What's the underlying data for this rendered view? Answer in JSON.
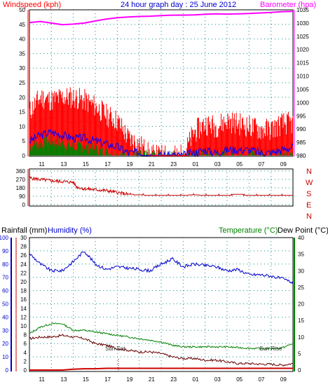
{
  "header": {
    "title": "24 hour graph day : 25 June 2012",
    "wind_label": "Windspeed (kph)",
    "baro_label": "Barometer (hpa)"
  },
  "colors": {
    "windspeed": "#ff0000",
    "gust_avg": "#0000ff",
    "calm": "#008000",
    "barometer": "#ff00ff",
    "direction": "#cc0000",
    "humidity": "#0000cc",
    "temperature": "#008000",
    "dewpoint": "#660000",
    "rainfall": "#cc0000",
    "axis_left": "#0000cc",
    "axis_right_top": "#ff00ff",
    "axis_right_bottom": "#008000",
    "grid": "#0a8a8a"
  },
  "x_ticks": [
    "11",
    "13",
    "15",
    "17",
    "19",
    "21",
    "23",
    "01",
    "03",
    "05",
    "07",
    "09"
  ],
  "chart_data": [
    {
      "type": "line",
      "title": "24 hour graph day : 25 June 2012",
      "x_unit": "hours",
      "ylabel": "Windspeed (kph)",
      "y2label": "Barometer (hpa)",
      "ylim": [
        0,
        50
      ],
      "y2lim": [
        980,
        1035
      ],
      "yticks": [
        "0",
        "5",
        "10",
        "15",
        "20",
        "25",
        "30",
        "35",
        "40",
        "45",
        "50"
      ],
      "y2ticks": [
        "980",
        "985",
        "990",
        "995",
        "1000",
        "1005",
        "1010",
        "1015",
        "1020",
        "1025",
        "1030",
        "1035"
      ],
      "grid": true,
      "series": [
        {
          "name": "Windspeed (kph)",
          "x": [
            0,
            1,
            2,
            3,
            4,
            5,
            6,
            7,
            8,
            9,
            10,
            11,
            12,
            13,
            14,
            15,
            16,
            17,
            18,
            19,
            20,
            21,
            22,
            23,
            24
          ],
          "values": [
            9,
            12,
            13,
            12,
            11,
            12,
            11,
            8,
            6,
            3,
            3,
            0,
            0,
            0,
            0,
            2,
            3,
            2,
            3,
            3,
            2,
            2,
            2,
            3,
            5
          ]
        },
        {
          "name": "wind max",
          "x": [
            0,
            1,
            2,
            3,
            4,
            5,
            6,
            7,
            8,
            9,
            10,
            11,
            12,
            13,
            14,
            15,
            16,
            17,
            18,
            19,
            20,
            21,
            22,
            23,
            24
          ],
          "values": [
            15,
            20,
            19,
            20,
            20,
            19,
            17,
            14,
            12,
            6,
            4,
            0,
            0,
            0,
            0,
            8,
            11,
            10,
            12,
            11,
            10,
            9,
            9,
            11,
            11
          ]
        },
        {
          "name": "wind avg",
          "x": [
            0,
            1,
            2,
            3,
            4,
            5,
            6,
            7,
            8,
            9,
            10,
            11,
            12,
            13,
            14,
            15,
            16,
            17,
            18,
            19,
            20,
            21,
            22,
            23,
            24
          ],
          "values": [
            5,
            7,
            8,
            7,
            6,
            6,
            5,
            4,
            3,
            1,
            1,
            0,
            0,
            0,
            0,
            1,
            2,
            1,
            2,
            2,
            2,
            1,
            1,
            2,
            3
          ]
        },
        {
          "name": "calm",
          "x": [
            0,
            1,
            2,
            3,
            4,
            5,
            6,
            7,
            8,
            9,
            10,
            11,
            12,
            13,
            14,
            15,
            16,
            17,
            18,
            19,
            20,
            21,
            22,
            23,
            24
          ],
          "values": [
            3,
            4,
            5,
            4,
            3,
            3,
            2,
            1,
            0,
            0,
            0,
            0,
            0,
            0,
            0,
            0,
            0,
            0,
            0,
            0,
            0,
            0,
            0,
            0,
            0
          ]
        },
        {
          "name": "Barometer (hpa)",
          "axis": "right",
          "x": [
            0,
            1,
            2,
            3,
            4,
            5,
            6,
            7,
            8,
            9,
            10,
            11,
            12,
            13,
            14,
            15,
            16,
            17,
            18,
            19,
            20,
            21,
            22,
            23,
            24
          ],
          "values": [
            1030.2,
            1030.6,
            1030,
            1029.4,
            1029.6,
            1030,
            1030.8,
            1031.5,
            1032,
            1032.3,
            1032.5,
            1032.6,
            1032.8,
            1033,
            1033,
            1033.1,
            1033.3,
            1033.5,
            1033.4,
            1033.5,
            1033.6,
            1033.8,
            1034,
            1034.3,
            1034.4
          ]
        }
      ]
    },
    {
      "type": "line",
      "ylabel": "Wind direction",
      "ylim": [
        0,
        360
      ],
      "yticks": [
        "0",
        "90",
        "180",
        "270",
        "360"
      ],
      "compass": [
        "N",
        "W",
        "S",
        "E",
        "N"
      ],
      "grid": true,
      "series": [
        {
          "name": "direction",
          "x": [
            0,
            1,
            2,
            3,
            4,
            4.3,
            5,
            6,
            7,
            8,
            9,
            10,
            11,
            12,
            13,
            14,
            15,
            16,
            17,
            18,
            19,
            20,
            21,
            22,
            23,
            24
          ],
          "values": [
            285,
            270,
            255,
            248,
            240,
            190,
            170,
            160,
            150,
            130,
            110,
            105,
            100,
            100,
            100,
            100,
            105,
            100,
            100,
            100,
            110,
            100,
            100,
            100,
            100,
            100
          ]
        }
      ]
    },
    {
      "type": "line",
      "ylabel": "Humidity (%)",
      "ylabel2": "Rainfall (mm)",
      "y2label": "Temperature (°C)Dew Point (°C)",
      "ylim": [
        0,
        100
      ],
      "rain_lim": [
        0,
        30
      ],
      "y2lim": [
        0,
        40
      ],
      "humidity_ticks": [
        "0",
        "10",
        "20",
        "30",
        "40",
        "50",
        "60",
        "70",
        "80",
        "90",
        "100"
      ],
      "rain_ticks": [
        "0",
        "2",
        "4",
        "6",
        "8",
        "10",
        "12",
        "14",
        "16",
        "18",
        "20",
        "22",
        "24",
        "26",
        "28",
        "30"
      ],
      "y2ticks": [
        "0",
        "5",
        "10",
        "15",
        "20",
        "25",
        "30",
        "35",
        "40"
      ],
      "annotations": [
        {
          "text": "Sun Set",
          "x": 8
        },
        {
          "text": "Sun Rise",
          "x": 23
        }
      ],
      "grid": true,
      "series": [
        {
          "name": "Humidity",
          "x": [
            0,
            1,
            2,
            3,
            4,
            5,
            6,
            7,
            8,
            9,
            10,
            11,
            12,
            13,
            14,
            15,
            16,
            17,
            18,
            19,
            20,
            21,
            22,
            23,
            24
          ],
          "values": [
            88,
            80,
            75,
            75,
            82,
            90,
            80,
            76,
            78,
            77,
            76,
            75,
            80,
            84,
            78,
            80,
            79,
            78,
            75,
            76,
            72,
            72,
            71,
            69,
            66
          ]
        },
        {
          "name": "Temperature",
          "x": [
            0,
            1,
            2,
            3,
            4,
            5,
            6,
            7,
            8,
            9,
            10,
            11,
            12,
            13,
            14,
            15,
            16,
            17,
            18,
            19,
            20,
            21,
            22,
            23,
            24
          ],
          "values": [
            11,
            13,
            14,
            14,
            12,
            12,
            11.5,
            11,
            10.5,
            10,
            9.5,
            9,
            8.5,
            7.5,
            7,
            7,
            7,
            7,
            7,
            6.8,
            6.6,
            6.5,
            6.5,
            6.7,
            8
          ]
        },
        {
          "name": "Dew Point",
          "x": [
            0,
            1,
            2,
            3,
            4,
            5,
            6,
            7,
            8,
            9,
            10,
            11,
            12,
            13,
            14,
            15,
            16,
            17,
            18,
            19,
            20,
            21,
            22,
            23,
            24
          ],
          "values": [
            9.5,
            10,
            10,
            10.5,
            10,
            9.5,
            8,
            7.5,
            6.5,
            6,
            5.5,
            5.5,
            5,
            4,
            3.5,
            3.5,
            3,
            3,
            2.5,
            2,
            2,
            1.8,
            1.8,
            1.5,
            2
          ]
        },
        {
          "name": "Rainfall",
          "axis": "rain",
          "x": [
            0,
            1,
            2,
            3,
            4,
            5,
            6,
            7,
            8,
            9,
            10,
            11,
            12,
            13,
            14,
            15,
            16,
            17,
            18,
            19,
            20,
            21,
            22,
            23,
            24
          ],
          "values": [
            0,
            0,
            0,
            0,
            0.2,
            0.3,
            0.3,
            0.4,
            0.4,
            0.4,
            0.4,
            0.4,
            0.4,
            0.4,
            0.4,
            0.4,
            0.4,
            0.4,
            0.4,
            0.4,
            0.4,
            0.4,
            0.4,
            0.4,
            0.4
          ]
        }
      ]
    }
  ],
  "bottom": {
    "rainfall_label": "Rainfall (mm)",
    "humidity_label": "Humidity (%)",
    "temp_dew_label_temp": "Temperature (°C)",
    "temp_dew_label_dew": "Dew Point (°C)",
    "sunset_label": "Sun Set",
    "sunrise_label": "Sun Rise"
  }
}
